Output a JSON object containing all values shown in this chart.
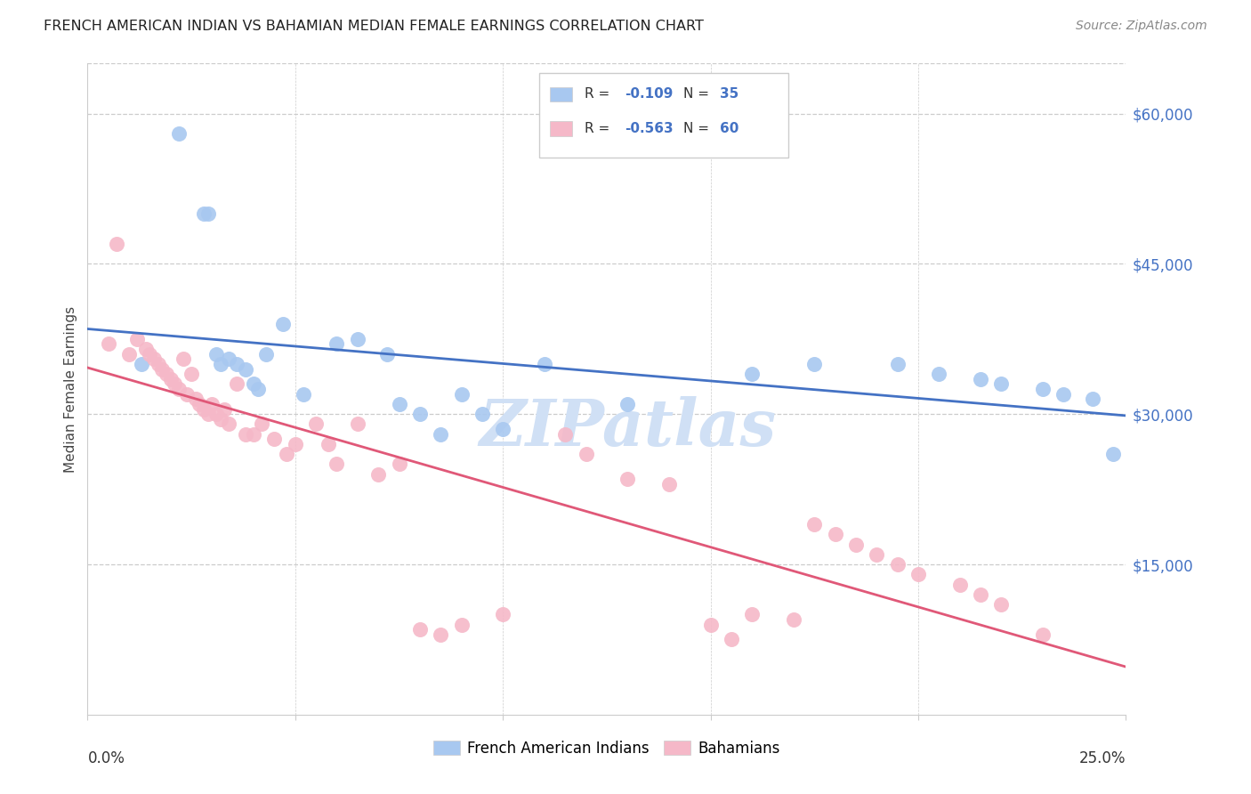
{
  "title": "FRENCH AMERICAN INDIAN VS BAHAMIAN MEDIAN FEMALE EARNINGS CORRELATION CHART",
  "source": "Source: ZipAtlas.com",
  "ylabel": "Median Female Earnings",
  "ytick_labels": [
    "$60,000",
    "$45,000",
    "$30,000",
    "$15,000"
  ],
  "ytick_values": [
    60000,
    45000,
    30000,
    15000
  ],
  "ymin": 0,
  "ymax": 65000,
  "xmin": 0.0,
  "xmax": 0.25,
  "blue_color": "#a8c8f0",
  "pink_color": "#f5b8c8",
  "blue_line_color": "#4472c4",
  "pink_line_color": "#e05878",
  "watermark_color": "#d0e0f5",
  "blue_points_x": [
    0.013,
    0.022,
    0.028,
    0.029,
    0.031,
    0.032,
    0.034,
    0.036,
    0.038,
    0.04,
    0.041,
    0.043,
    0.047,
    0.052,
    0.06,
    0.065,
    0.072,
    0.075,
    0.08,
    0.085,
    0.09,
    0.095,
    0.1,
    0.11,
    0.13,
    0.16,
    0.175,
    0.195,
    0.205,
    0.215,
    0.22,
    0.23,
    0.235,
    0.242,
    0.247
  ],
  "blue_points_y": [
    35000,
    58000,
    50000,
    50000,
    36000,
    35000,
    35500,
    35000,
    34500,
    33000,
    32500,
    36000,
    39000,
    32000,
    37000,
    37500,
    36000,
    31000,
    30000,
    28000,
    32000,
    30000,
    28500,
    35000,
    31000,
    34000,
    35000,
    35000,
    34000,
    33500,
    33000,
    32500,
    32000,
    31500,
    26000
  ],
  "pink_points_x": [
    0.005,
    0.007,
    0.01,
    0.012,
    0.014,
    0.015,
    0.016,
    0.017,
    0.018,
    0.019,
    0.02,
    0.021,
    0.022,
    0.023,
    0.024,
    0.025,
    0.026,
    0.027,
    0.028,
    0.029,
    0.03,
    0.031,
    0.032,
    0.033,
    0.034,
    0.036,
    0.038,
    0.04,
    0.042,
    0.045,
    0.048,
    0.05,
    0.055,
    0.058,
    0.06,
    0.065,
    0.07,
    0.075,
    0.08,
    0.085,
    0.09,
    0.1,
    0.115,
    0.12,
    0.13,
    0.14,
    0.15,
    0.155,
    0.16,
    0.17,
    0.175,
    0.18,
    0.185,
    0.19,
    0.195,
    0.2,
    0.21,
    0.215,
    0.22,
    0.23
  ],
  "pink_points_y": [
    37000,
    47000,
    36000,
    37500,
    36500,
    36000,
    35500,
    35000,
    34500,
    34000,
    33500,
    33000,
    32500,
    35500,
    32000,
    34000,
    31500,
    31000,
    30500,
    30000,
    31000,
    30000,
    29500,
    30500,
    29000,
    33000,
    28000,
    28000,
    29000,
    27500,
    26000,
    27000,
    29000,
    27000,
    25000,
    29000,
    24000,
    25000,
    8500,
    8000,
    9000,
    10000,
    28000,
    26000,
    23500,
    23000,
    9000,
    7500,
    10000,
    9500,
    19000,
    18000,
    17000,
    16000,
    15000,
    14000,
    13000,
    12000,
    11000,
    8000
  ]
}
